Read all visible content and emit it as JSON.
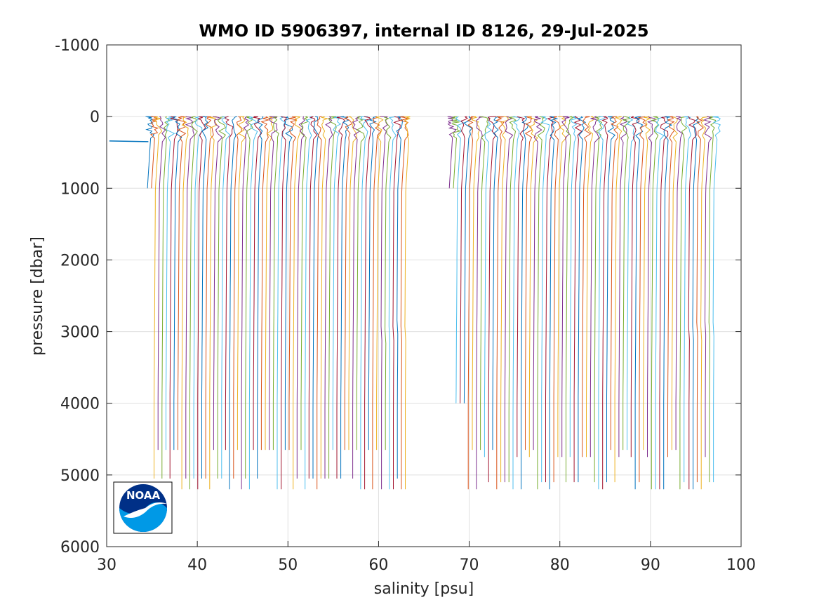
{
  "chart_data": {
    "type": "line",
    "title": "WMO ID 5906397, internal ID 8126, 29-Jul-2025",
    "xlabel": "salinity [psu]",
    "ylabel": "pressure [dbar]",
    "xlim": [
      30,
      100
    ],
    "ylim": [
      -1000,
      6000
    ],
    "y_reversed": true,
    "grid": true,
    "x_ticks": [
      "30",
      "40",
      "50",
      "60",
      "70",
      "80",
      "90",
      "100"
    ],
    "y_ticks": [
      "-1000",
      "0",
      "1000",
      "2000",
      "3000",
      "4000",
      "5000",
      "6000"
    ],
    "description_of_series": "Waterfall of CTD salinity profiles; each successive profile is offset by a constant salinity step. Profiles run from the surface (0 dbar) to roughly 4000-5200 dbar.",
    "profile_groups": [
      {
        "x_start": 35.0,
        "x_end": 63.5,
        "count": 66,
        "surface_pressure": 0,
        "bottom_pressures_dbar": [
          1000,
          4000,
          4650,
          5050,
          5200
        ]
      },
      {
        "x_start": 68.3,
        "x_end": 97.5,
        "count": 66,
        "surface_pressure": 0,
        "bottom_pressures_dbar": [
          1000,
          4000,
          4650,
          4750,
          5100,
          5200
        ]
      }
    ],
    "outlier_segment": {
      "x": [
        30.3,
        34.6
      ],
      "y": [
        340,
        350
      ]
    },
    "series_colors": [
      "#0072bd",
      "#d95319",
      "#edb120",
      "#7e2f8e",
      "#77ac30",
      "#4dbeee",
      "#a2142f"
    ]
  },
  "logo": {
    "text": "NOAA",
    "colors": {
      "navy": "#003087",
      "sky": "#0099e6",
      "white": "#ffffff"
    }
  }
}
